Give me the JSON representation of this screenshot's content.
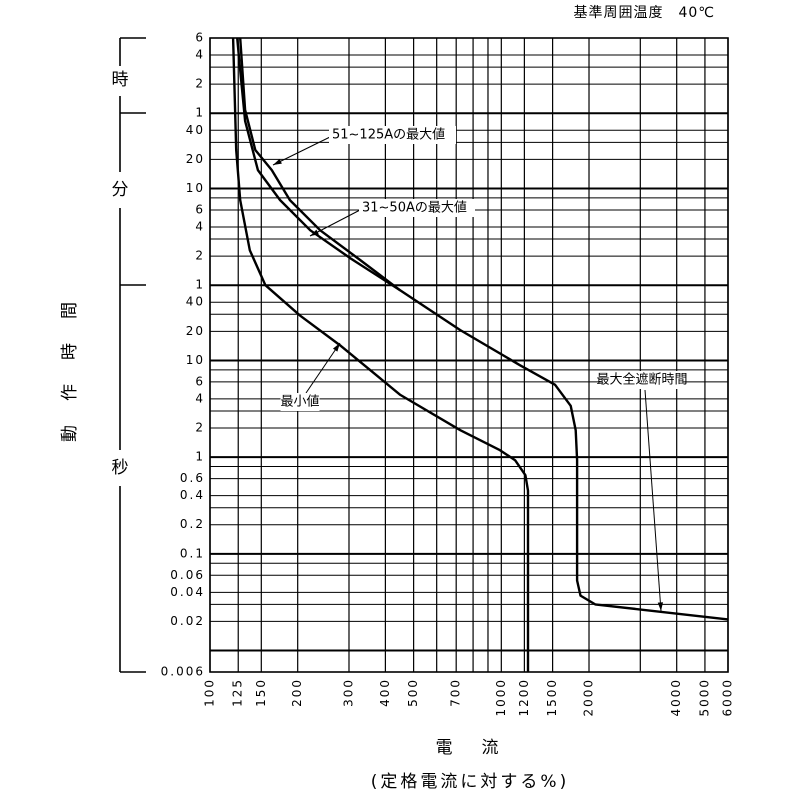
{
  "chart_data": {
    "type": "line",
    "title": "基準周囲温度　40℃",
    "y_label": "動作時間",
    "x_label": "電　流",
    "x_sublabel": "(定格電流に対する%)",
    "unit_labels": [
      "時",
      "分",
      "秒"
    ],
    "log_x": true,
    "log_y": true,
    "xlim": [
      100,
      6000
    ],
    "ylim": [
      0.006,
      21600
    ],
    "xticks": [
      100,
      125,
      150,
      200,
      300,
      400,
      500,
      700,
      1000,
      1200,
      1500,
      2000,
      4000,
      5000,
      6000
    ],
    "xgrid": [
      100,
      125,
      150,
      200,
      300,
      400,
      500,
      600,
      700,
      800,
      900,
      1000,
      1200,
      1500,
      2000,
      3000,
      4000,
      5000,
      6000
    ],
    "yticks": [
      {
        "value": 21600,
        "label": "6"
      },
      {
        "value": 14400,
        "label": "4"
      },
      {
        "value": 7200,
        "label": "2"
      },
      {
        "value": 3600,
        "label": "1"
      },
      {
        "value": 2400,
        "label": "40"
      },
      {
        "value": 1200,
        "label": "20"
      },
      {
        "value": 600,
        "label": "10"
      },
      {
        "value": 360,
        "label": "6"
      },
      {
        "value": 240,
        "label": "4"
      },
      {
        "value": 120,
        "label": "2"
      },
      {
        "value": 60,
        "label": "1"
      },
      40,
      20,
      10,
      6,
      4,
      2,
      1,
      0.6,
      0.4,
      0.2,
      0.1,
      0.06,
      0.04,
      0.02,
      0.006
    ],
    "ygrid": [
      21600,
      14400,
      10800,
      7200,
      3600,
      2400,
      1800,
      1200,
      600,
      480,
      360,
      240,
      180,
      120,
      60,
      40,
      30,
      20,
      10,
      8,
      6,
      4,
      3,
      2,
      1,
      0.8,
      0.6,
      0.4,
      0.3,
      0.2,
      0.1,
      0.08,
      0.06,
      0.04,
      0.03,
      0.02,
      0.01,
      0.006
    ],
    "ymajor": [
      3600,
      600,
      60,
      10,
      1,
      0.1,
      0.01
    ],
    "color": "#000000",
    "series": [
      {
        "name": "51~125Aの最大値",
        "x": [
          127,
          132,
          143,
          163,
          188,
          239,
          328,
          450
        ],
        "values": [
          21600,
          3900,
          1500,
          930,
          455,
          222,
          109,
          53
        ]
      },
      {
        "name": "31~50Aの最大値",
        "x": [
          124,
          127,
          132,
          146,
          174,
          221,
          303,
          450
        ],
        "values": [
          21600,
          10000,
          3000,
          930,
          455,
          222,
          114,
          53
        ]
      },
      {
        "name": "最小値",
        "x": [
          120,
          123,
          127,
          137,
          155,
          204,
          279,
          450,
          723,
          990,
          1115,
          1210,
          1235,
          1235
        ],
        "values": [
          21600,
          1500,
          455,
          138,
          60,
          29,
          14.4,
          4.4,
          1.9,
          1.18,
          0.93,
          0.65,
          0.45,
          0.006
        ]
      },
      {
        "name": "最大全遮断時間",
        "x": [
          450,
          723,
          1160,
          1530,
          1730,
          1800,
          1820,
          1820,
          1870,
          2100,
          6000
        ],
        "values": [
          53,
          20.6,
          8.9,
          5.6,
          3.4,
          1.9,
          0.93,
          0.053,
          0.037,
          0.03,
          0.021
        ]
      }
    ]
  }
}
